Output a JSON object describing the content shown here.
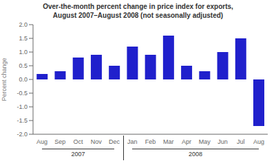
{
  "chart_data": {
    "type": "bar",
    "title": "Over-the-month percent change in price index for exports,",
    "subtitle": "August 2007–August 2008 (not seasonally adjusted)",
    "ylabel": "Percent change",
    "categories": [
      "Aug",
      "Sep",
      "Oct",
      "Nov",
      "Dec",
      "Jan",
      "Feb",
      "Mar",
      "Apr",
      "May",
      "Jun",
      "Jul",
      "Aug"
    ],
    "values": [
      0.2,
      0.3,
      0.8,
      0.9,
      0.5,
      1.2,
      0.9,
      1.6,
      0.5,
      0.3,
      1.0,
      1.5,
      -1.7
    ],
    "color": "#2020cc",
    "ylim": [
      -2.0,
      2.0
    ],
    "yticks": [
      {
        "value": -2.0,
        "label": "-2.0"
      },
      -1.5,
      {
        "value": -1.0,
        "label": "-1.0"
      },
      -0.5,
      {
        "value": 0.0,
        "label": "0.0"
      },
      0.5,
      {
        "value": 1.0,
        "label": "1.0"
      },
      1.5,
      {
        "value": 2.0,
        "label": "2.0"
      }
    ],
    "grid": false,
    "annotations": [
      {
        "text": "2007",
        "from": 0,
        "to": 4
      },
      {
        "text": "2008",
        "from": 5,
        "to": 12
      }
    ]
  }
}
